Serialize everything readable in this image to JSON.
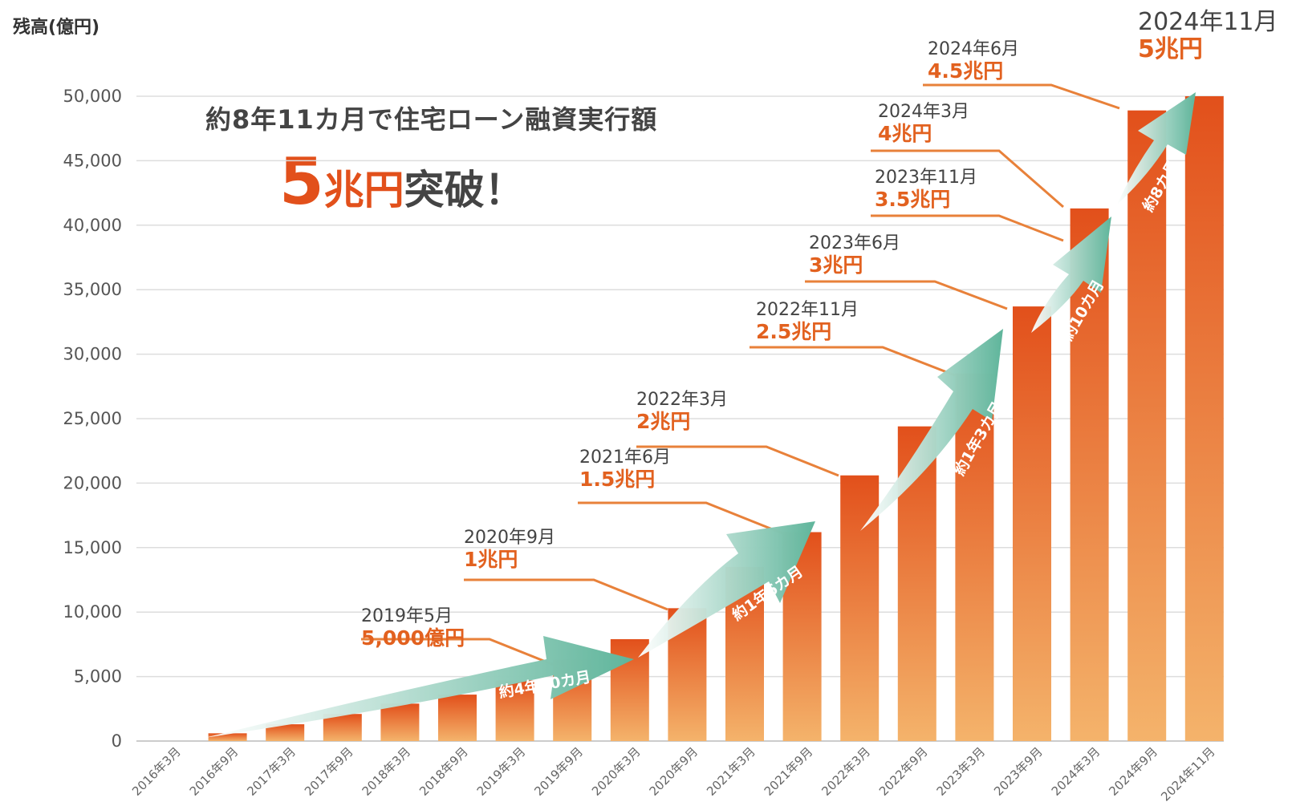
{
  "y_axis_label": "残高(億円)",
  "headline": {
    "line1": "約8年11カ月で住宅ローン融資実行額",
    "num": "5",
    "unit": "兆円",
    "rest": "突破！"
  },
  "colors": {
    "bar_top": "#e2501b",
    "bar_bottom": "#f4b36b",
    "callout_line": "#e8813a",
    "amount_text": "#e2611f",
    "date_text": "#444444",
    "arrow": "#5fb59b",
    "grid": "#dddddd"
  },
  "chart_data": {
    "type": "bar",
    "title": "約8年11カ月で住宅ローン融資実行額 5兆円突破！",
    "ylabel": "残高(億円)",
    "xlabel": "",
    "ylim": [
      0,
      50000
    ],
    "yticks": [
      0,
      5000,
      10000,
      15000,
      20000,
      25000,
      30000,
      35000,
      40000,
      45000,
      50000
    ],
    "ytick_labels": [
      "0",
      "5,000",
      "10,000",
      "15,000",
      "20,000",
      "25,000",
      "30,000",
      "35,000",
      "40,000",
      "45,000",
      "50,000"
    ],
    "grid": true,
    "categories": [
      "2016年3月",
      "2016年9月",
      "2017年3月",
      "2017年9月",
      "2018年3月",
      "2018年9月",
      "2019年3月",
      "2019年9月",
      "2020年3月",
      "2020年9月",
      "2021年3月",
      "2021年9月",
      "2022年3月",
      "2022年9月",
      "2023年3月",
      "2023年9月",
      "2024年3月",
      "2024年9月",
      "2024年11月"
    ],
    "values": [
      0,
      600,
      1300,
      2100,
      2900,
      3600,
      4700,
      6300,
      7900,
      10300,
      13500,
      16200,
      20600,
      24400,
      28500,
      33700,
      41300,
      48900,
      50000
    ],
    "milestones": [
      {
        "date": "2019年5月",
        "amount": "5,000億円",
        "bar": 7
      },
      {
        "date": "2020年9月",
        "amount": "1兆円",
        "bar": 9
      },
      {
        "date": "2021年6月",
        "amount": "1.5兆円",
        "bar": 11
      },
      {
        "date": "2022年3月",
        "amount": "2兆円",
        "bar": 12
      },
      {
        "date": "2022年11月",
        "amount": "2.5兆円",
        "bar": 14
      },
      {
        "date": "2023年6月",
        "amount": "3兆円",
        "bar": 15
      },
      {
        "date": "2023年11月",
        "amount": "3.5兆円",
        "bar": 16
      },
      {
        "date": "2024年3月",
        "amount": "4兆円",
        "bar": 16
      },
      {
        "date": "2024年6月",
        "amount": "4.5兆円",
        "bar": 17
      },
      {
        "date": "2024年11月",
        "amount": "5兆円",
        "bar": 18
      }
    ],
    "periods": [
      "約4年10カ月",
      "約1年6カ月",
      "約1年3カ月",
      "約10カ月",
      "約8カ月"
    ]
  }
}
